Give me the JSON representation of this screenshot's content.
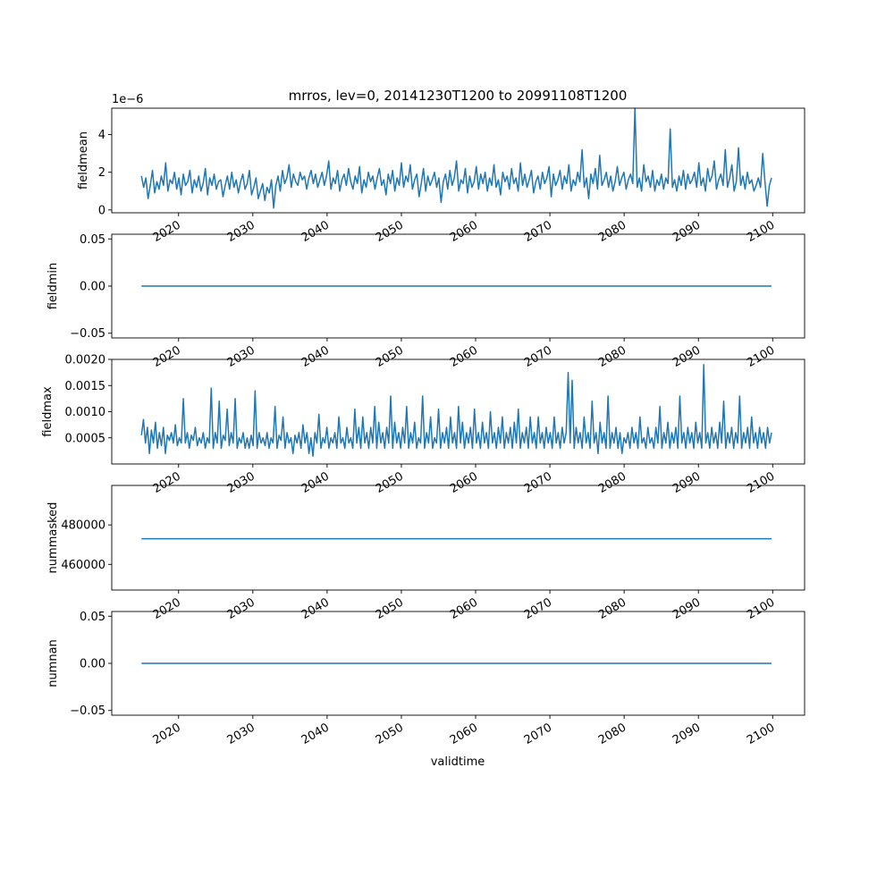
{
  "figure": {
    "title": "mrros, lev=0, 20141230T1200 to 20991108T1200",
    "xlabel": "validtime",
    "line_color": "#1f77b4"
  },
  "chart_data": [
    {
      "type": "line",
      "ylabel": "fieldmean",
      "offset_text": "1e−6",
      "ylim": [
        -0.15,
        5.4
      ],
      "yticks": [
        0,
        2,
        4
      ],
      "ytick_labels": [
        "0",
        "2",
        "4"
      ],
      "xlim": [
        2011.0,
        2104.3
      ],
      "xticks": [
        2020,
        2030,
        2040,
        2050,
        2060,
        2070,
        2080,
        2090,
        2100
      ],
      "xtick_labels": [
        "2020",
        "2030",
        "2040",
        "2050",
        "2060",
        "2070",
        "2080",
        "2090",
        "2100"
      ],
      "x_start": 2015.0,
      "x_end": 2099.85,
      "series": [
        {
          "values": [
            1.8,
            1.2,
            1.7,
            0.6,
            1.3,
            2.1,
            0.9,
            1.5,
            1.1,
            1.8,
            1.3,
            2.5,
            1.0,
            1.6,
            1.4,
            2.0,
            1.1,
            1.7,
            0.8,
            1.9,
            1.3,
            1.5,
            2.1,
            0.9,
            1.6,
            1.2,
            1.8,
            1.0,
            1.4,
            2.2,
            0.8,
            1.7,
            1.3,
            1.9,
            1.1,
            1.5,
            1.6,
            0.7,
            1.3,
            1.8,
            1.1,
            2.0,
            1.2,
            1.6,
            0.9,
            1.5,
            1.9,
            1.1,
            1.4,
            2.1,
            0.8,
            1.2,
            1.7,
            0.6,
            1.0,
            1.4,
            0.5,
            1.2,
            0.9,
            1.6,
            0.1,
            1.3,
            1.8,
            1.0,
            2.1,
            1.4,
            1.7,
            2.4,
            1.2,
            1.9,
            1.5,
            1.3,
            2.0,
            1.6,
            1.8,
            1.1,
            1.7,
            2.1,
            1.4,
            1.9,
            1.2,
            1.6,
            2.0,
            1.3,
            1.8,
            2.6,
            1.1,
            1.7,
            1.4,
            2.1,
            1.0,
            1.6,
            1.9,
            1.3,
            2.2,
            1.5,
            1.1,
            1.8,
            1.4,
            2.3,
            0.9,
            1.6,
            1.2,
            2.0,
            1.5,
            1.8,
            1.1,
            1.7,
            2.2,
            1.3,
            1.6,
            0.8,
            1.9,
            1.4,
            2.1,
            1.0,
            1.7,
            1.3,
            2.5,
            1.2,
            1.8,
            1.5,
            2.4,
            1.1,
            1.6,
            1.9,
            0.7,
            1.4,
            2.2,
            1.0,
            1.8,
            1.3,
            1.6,
            2.0,
            1.2,
            1.7,
            0.4,
            1.5,
            1.9,
            1.1,
            2.1,
            1.3,
            1.7,
            2.6,
            1.0,
            1.6,
            1.4,
            2.2,
            0.9,
            1.8,
            1.2,
            1.5,
            2.3,
            1.1,
            1.9,
            1.4,
            2.0,
            1.0,
            1.7,
            1.3,
            2.4,
            1.2,
            1.6,
            0.8,
            2.0,
            1.5,
            1.8,
            1.1,
            2.2,
            1.4,
            1.7,
            1.0,
            2.5,
            1.3,
            1.9,
            1.2,
            1.6,
            2.1,
            0.9,
            1.5,
            1.8,
            1.1,
            2.0,
            1.4,
            1.7,
            2.3,
            0.7,
            1.9,
            1.3,
            1.6,
            2.1,
            1.1,
            1.8,
            1.4,
            2.4,
            1.0,
            1.6,
            1.3,
            2.0,
            1.5,
            3.2,
            1.2,
            1.7,
            0.6,
            1.9,
            1.4,
            2.2,
            1.1,
            2.9,
            1.3,
            1.6,
            2.0,
            1.2,
            1.8,
            1.0,
            1.5,
            2.3,
            1.3,
            1.7,
            2.0,
            1.1,
            1.6,
            1.9,
            1.4,
            5.4,
            1.2,
            1.7,
            1.0,
            2.4,
            1.5,
            1.8,
            1.2,
            2.1,
            1.0,
            1.6,
            1.3,
            1.9,
            1.1,
            1.7,
            1.4,
            4.3,
            1.2,
            1.6,
            1.0,
            1.8,
            1.3,
            2.1,
            1.1,
            1.9,
            1.4,
            1.6,
            2.0,
            1.2,
            2.5,
            1.3,
            1.7,
            1.0,
            2.2,
            1.5,
            1.8,
            2.6,
            1.1,
            1.6,
            1.9,
            1.3,
            3.2,
            1.2,
            1.7,
            2.4,
            1.0,
            1.5,
            3.3,
            1.3,
            1.8,
            1.1,
            2.0,
            1.4,
            1.6,
            1.0,
            1.3,
            1.7,
            1.2,
            3.0,
            1.5,
            0.2,
            1.3,
            1.7
          ]
        }
      ]
    },
    {
      "type": "line",
      "ylabel": "fieldmin",
      "offset_text": "",
      "ylim": [
        -0.055,
        0.055
      ],
      "yticks": [
        -0.05,
        0,
        0.05
      ],
      "ytick_labels": [
        "−0.05",
        "0.00",
        "0.05"
      ],
      "xlim": [
        2011.0,
        2104.3
      ],
      "xticks": [
        2020,
        2030,
        2040,
        2050,
        2060,
        2070,
        2080,
        2090,
        2100
      ],
      "xtick_labels": [
        "2020",
        "2030",
        "2040",
        "2050",
        "2060",
        "2070",
        "2080",
        "2090",
        "2100"
      ],
      "x_start": 2015.0,
      "x_end": 2099.85,
      "series": [
        {
          "values": [
            0,
            0
          ]
        }
      ]
    },
    {
      "type": "line",
      "ylabel": "fieldmax",
      "offset_text": "",
      "ylim": [
        0.0,
        0.002
      ],
      "yticks": [
        0.0005,
        0.001,
        0.0015,
        0.002
      ],
      "ytick_labels": [
        "0.0005",
        "0.0010",
        "0.0015",
        "0.0020"
      ],
      "xlim": [
        2011.0,
        2104.3
      ],
      "xticks": [
        2020,
        2030,
        2040,
        2050,
        2060,
        2070,
        2080,
        2090,
        2100
      ],
      "xtick_labels": [
        "2020",
        "2030",
        "2040",
        "2050",
        "2060",
        "2070",
        "2080",
        "2090",
        "2100"
      ],
      "x_start": 2015.0,
      "x_end": 2099.85,
      "series": [
        {
          "values": [
            0.00055,
            0.00085,
            0.0004,
            0.0007,
            0.0002,
            0.00065,
            0.0004,
            0.0008,
            0.0003,
            0.0006,
            0.00035,
            0.0007,
            0.0002,
            0.00055,
            0.00045,
            0.0006,
            0.0004,
            0.00075,
            0.00035,
            0.0005,
            0.0004,
            0.00125,
            0.0004,
            0.0006,
            0.0003,
            0.00055,
            0.00045,
            0.0007,
            0.00035,
            0.0005,
            0.0004,
            0.0006,
            0.0003,
            0.0005,
            0.0004,
            0.00145,
            0.0003,
            0.0006,
            0.0004,
            0.0012,
            0.0003,
            0.00055,
            0.00045,
            0.00105,
            0.00035,
            0.0006,
            0.0004,
            0.00125,
            0.0003,
            0.0005,
            0.0004,
            0.0006,
            0.0003,
            0.0005,
            0.0003,
            0.00055,
            0.00035,
            0.0014,
            0.0003,
            0.0006,
            0.0004,
            0.0005,
            0.00035,
            0.0006,
            0.0003,
            0.0005,
            0.0004,
            0.0011,
            0.0003,
            0.00055,
            0.00045,
            0.0009,
            0.0003,
            0.0006,
            0.0004,
            0.0005,
            0.0002,
            0.00055,
            0.0004,
            0.0006,
            0.0003,
            0.00075,
            0.0004,
            0.0006,
            0.0002,
            0.0005,
            0.00015,
            0.0006,
            0.0004,
            0.00095,
            0.0003,
            0.0005,
            0.0004,
            0.0007,
            0.0003,
            0.0005,
            0.0004,
            0.0006,
            0.0003,
            0.0009,
            0.0004,
            0.0005,
            0.0003,
            0.0007,
            0.0004,
            0.0005,
            0.0003,
            0.00105,
            0.0004,
            0.0007,
            0.0003,
            0.0009,
            0.0004,
            0.0006,
            0.0003,
            0.0007,
            0.0004,
            0.0011,
            0.0003,
            0.0008,
            0.0004,
            0.0006,
            0.0003,
            0.0007,
            0.0004,
            0.0013,
            0.0003,
            0.0008,
            0.0004,
            0.0006,
            0.0003,
            0.0007,
            0.0004,
            0.0011,
            0.0003,
            0.0006,
            0.0004,
            0.0008,
            0.0003,
            0.0005,
            0.0004,
            0.0013,
            0.0003,
            0.0006,
            0.0004,
            0.0009,
            0.0003,
            0.0005,
            0.0004,
            0.00105,
            0.0003,
            0.0006,
            0.0004,
            0.0007,
            0.0003,
            0.0009,
            0.0004,
            0.0006,
            0.0003,
            0.0011,
            0.0004,
            0.0008,
            0.0003,
            0.0006,
            0.0004,
            0.0007,
            0.0003,
            0.00105,
            0.0004,
            0.0006,
            0.0003,
            0.0008,
            0.0004,
            0.0006,
            0.0003,
            0.001,
            0.0004,
            0.0006,
            0.0003,
            0.0007,
            0.0004,
            0.0009,
            0.0003,
            0.0006,
            0.0004,
            0.0007,
            0.0003,
            0.0008,
            0.0004,
            0.00105,
            0.0003,
            0.0006,
            0.0004,
            0.0007,
            0.0003,
            0.0009,
            0.0004,
            0.0006,
            0.0003,
            0.0009,
            0.0004,
            0.0006,
            0.0003,
            0.0007,
            0.0004,
            0.0006,
            0.0003,
            0.0009,
            0.0004,
            0.0006,
            0.0003,
            0.0007,
            0.0004,
            0.0006,
            0.00175,
            0.0004,
            0.0016,
            0.0003,
            0.0007,
            0.0004,
            0.0006,
            0.0003,
            0.0009,
            0.0004,
            0.0006,
            0.0003,
            0.0012,
            0.0004,
            0.0006,
            0.0002,
            0.0008,
            0.0004,
            0.0006,
            0.0003,
            0.0013,
            0.0003,
            0.0006,
            0.0004,
            0.0007,
            0.0003,
            0.0006,
            0.0002,
            0.0005,
            0.0004,
            0.0006,
            0.0003,
            0.0007,
            0.0004,
            0.0006,
            0.0003,
            0.0009,
            0.0004,
            0.0005,
            0.0003,
            0.0007,
            0.0004,
            0.0005,
            0.0003,
            0.0007,
            0.0004,
            0.0011,
            0.0003,
            0.0006,
            0.0004,
            0.0008,
            0.0003,
            0.0006,
            0.0004,
            0.0007,
            0.0003,
            0.0013,
            0.0004,
            0.0006,
            0.0003,
            0.0007,
            0.0004,
            0.0006,
            0.0003,
            0.0008,
            0.0004,
            0.0006,
            0.0003,
            0.0019,
            0.0004,
            0.0006,
            0.0003,
            0.0007,
            0.0004,
            0.0006,
            0.0003,
            0.0008,
            0.0004,
            0.0012,
            0.0003,
            0.0006,
            0.0004,
            0.0007,
            0.0003,
            0.0006,
            0.0004,
            0.0013,
            0.0003,
            0.0006,
            0.0004,
            0.0007,
            0.0003,
            0.0009,
            0.0004,
            0.0006,
            0.0003,
            0.0007,
            0.0004,
            0.0006,
            0.0003,
            0.0007,
            0.0004,
            0.0006
          ]
        }
      ]
    },
    {
      "type": "line",
      "ylabel": "nummasked",
      "offset_text": "",
      "ylim": [
        447000,
        500000
      ],
      "yticks": [
        460000,
        480000
      ],
      "ytick_labels": [
        "460000",
        "480000"
      ],
      "xlim": [
        2011.0,
        2104.3
      ],
      "xticks": [
        2020,
        2030,
        2040,
        2050,
        2060,
        2070,
        2080,
        2090,
        2100
      ],
      "xtick_labels": [
        "2020",
        "2030",
        "2040",
        "2050",
        "2060",
        "2070",
        "2080",
        "2090",
        "2100"
      ],
      "x_start": 2015.0,
      "x_end": 2099.85,
      "series": [
        {
          "values": [
            473000,
            473000
          ]
        }
      ]
    },
    {
      "type": "line",
      "ylabel": "numnan",
      "offset_text": "",
      "ylim": [
        -0.055,
        0.055
      ],
      "yticks": [
        -0.05,
        0,
        0.05
      ],
      "ytick_labels": [
        "−0.05",
        "0.00",
        "0.05"
      ],
      "xlim": [
        2011.0,
        2104.3
      ],
      "xticks": [
        2020,
        2030,
        2040,
        2050,
        2060,
        2070,
        2080,
        2090,
        2100
      ],
      "xtick_labels": [
        "2020",
        "2030",
        "2040",
        "2050",
        "2060",
        "2070",
        "2080",
        "2090",
        "2100"
      ],
      "x_start": 2015.0,
      "x_end": 2099.85,
      "series": [
        {
          "values": [
            0,
            0
          ]
        }
      ]
    }
  ]
}
